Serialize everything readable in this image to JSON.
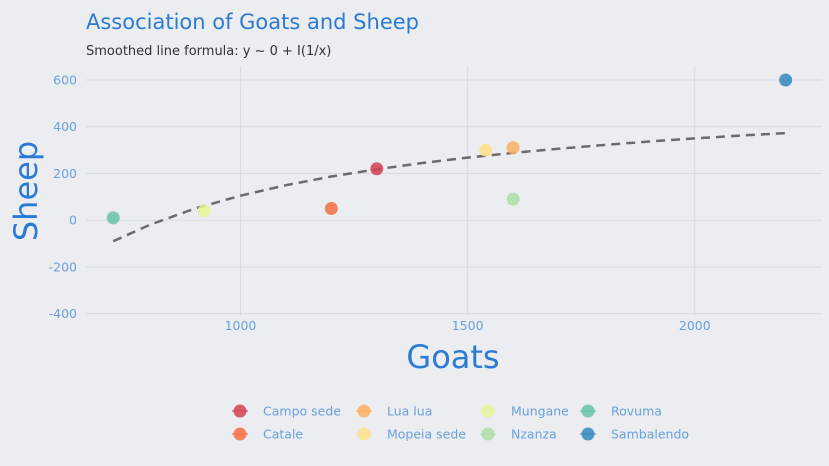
{
  "chart_data": {
    "type": "scatter",
    "title": "Association of Goats and Sheep",
    "subtitle": "Smoothed line formula: y ~ 0 + I(1/x)",
    "xlabel": "Goats",
    "ylabel": "Sheep",
    "xlim": [
      660,
      2280
    ],
    "ylim": [
      -410,
      660
    ],
    "x_ticks": [
      1000,
      1500,
      2000
    ],
    "y_ticks": [
      -400,
      -200,
      0,
      200,
      400,
      600
    ],
    "grid": true,
    "legend_position": "bottom",
    "points": [
      {
        "name": "Campo sede",
        "x": 1300,
        "y": 220,
        "color": "#d53e4f"
      },
      {
        "name": "Catale",
        "x": 1200,
        "y": 50,
        "color": "#f46d43"
      },
      {
        "name": "Lua lua",
        "x": 1600,
        "y": 310,
        "color": "#fdae61"
      },
      {
        "name": "Mopeia sede",
        "x": 1540,
        "y": 300,
        "color": "#fee08b"
      },
      {
        "name": "Mungane",
        "x": 920,
        "y": 40,
        "color": "#e6f598"
      },
      {
        "name": "Nzanza",
        "x": 1600,
        "y": 90,
        "color": "#abdda4"
      },
      {
        "name": "Rovuma",
        "x": 720,
        "y": 10,
        "color": "#66c2a5"
      },
      {
        "name": "Sambalendo",
        "x": 2200,
        "y": 600,
        "color": "#3288bd"
      }
    ],
    "smooth_line": {
      "formula": "y ~ 0 + I(1/x)",
      "x": [
        720,
        800,
        900,
        1000,
        1100,
        1200,
        1300,
        1400,
        1500,
        1600,
        1700,
        1800,
        1900,
        2000,
        2100,
        2200
      ],
      "y": [
        -90,
        -20,
        50,
        105,
        150,
        187,
        218,
        245,
        268,
        288,
        306,
        322,
        337,
        350,
        362,
        373
      ],
      "color": "#6b6b6b",
      "style": "dashed"
    }
  }
}
